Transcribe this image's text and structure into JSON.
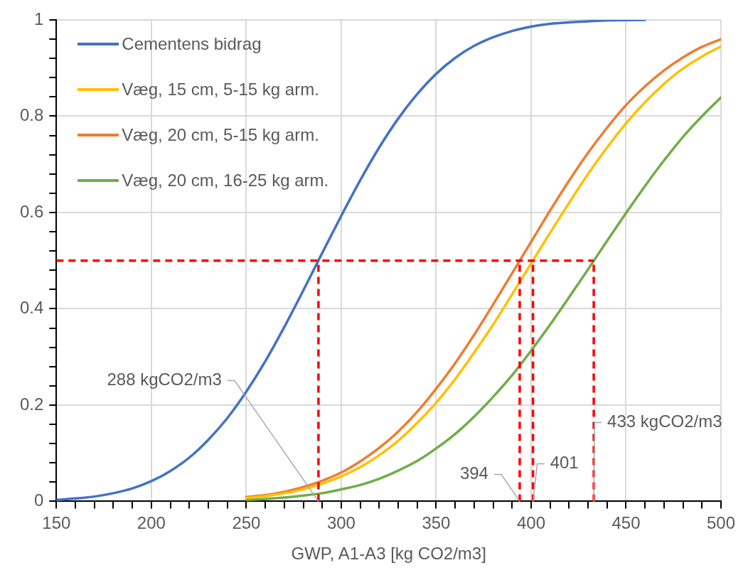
{
  "chart_data": {
    "type": "line",
    "xlabel": "GWP, A1-A3 [kg CO2/m3]",
    "xlim": [
      150,
      500
    ],
    "xticks": [
      150,
      {
        "value": 160,
        "label": null
      },
      {
        "value": 170,
        "label": null
      },
      {
        "value": 180,
        "label": null
      },
      {
        "value": 190,
        "label": null
      },
      200,
      {
        "value": 210,
        "label": null
      },
      {
        "value": 220,
        "label": null
      },
      {
        "value": 230,
        "label": null
      },
      {
        "value": 240,
        "label": null
      },
      250,
      {
        "value": 260,
        "label": null
      },
      {
        "value": 270,
        "label": null
      },
      {
        "value": 280,
        "label": null
      },
      {
        "value": 290,
        "label": null
      },
      300,
      {
        "value": 310,
        "label": null
      },
      {
        "value": 320,
        "label": null
      },
      {
        "value": 330,
        "label": null
      },
      {
        "value": 340,
        "label": null
      },
      350,
      {
        "value": 360,
        "label": null
      },
      {
        "value": 370,
        "label": null
      },
      {
        "value": 380,
        "label": null
      },
      {
        "value": 390,
        "label": null
      },
      400,
      {
        "value": 410,
        "label": null
      },
      {
        "value": 420,
        "label": null
      },
      {
        "value": 430,
        "label": null
      },
      {
        "value": 440,
        "label": null
      },
      450,
      {
        "value": 460,
        "label": null
      },
      {
        "value": 470,
        "label": null
      },
      {
        "value": 480,
        "label": null
      },
      {
        "value": 490,
        "label": null
      },
      500
    ],
    "ylim": [
      0,
      1
    ],
    "yticks": [
      0,
      {
        "value": 0.04,
        "label": null
      },
      {
        "value": 0.08,
        "label": null
      },
      {
        "value": 0.12,
        "label": null
      },
      {
        "value": 0.16,
        "label": null
      },
      0.2,
      {
        "value": 0.24,
        "label": null
      },
      {
        "value": 0.28,
        "label": null
      },
      {
        "value": 0.32,
        "label": null
      },
      {
        "value": 0.36,
        "label": null
      },
      0.4,
      {
        "value": 0.44,
        "label": null
      },
      {
        "value": 0.48,
        "label": null
      },
      {
        "value": 0.52,
        "label": null
      },
      {
        "value": 0.56,
        "label": null
      },
      0.6,
      {
        "value": 0.64,
        "label": null
      },
      {
        "value": 0.68,
        "label": null
      },
      {
        "value": 0.72,
        "label": null
      },
      {
        "value": 0.76,
        "label": null
      },
      0.8,
      {
        "value": 0.84,
        "label": null
      },
      {
        "value": 0.88,
        "label": null
      },
      {
        "value": 0.92,
        "label": null
      },
      {
        "value": 0.96,
        "label": null
      },
      1
    ],
    "grid": true,
    "legend": "top left",
    "marker": "none",
    "line_style": "solid",
    "series": [
      {
        "name": "Cementens bidrag",
        "color": "#4472c4",
        "x": [
          150,
          160,
          170,
          180,
          190,
          200,
          210,
          220,
          230,
          240,
          250,
          260,
          270,
          280,
          290,
          300,
          310,
          320,
          330,
          340,
          350,
          360,
          370,
          380,
          390,
          400,
          410,
          420,
          430,
          440,
          460
        ],
        "values": [
          0.003,
          0.006,
          0.01,
          0.017,
          0.027,
          0.042,
          0.063,
          0.091,
          0.128,
          0.173,
          0.228,
          0.291,
          0.362,
          0.438,
          0.516,
          0.593,
          0.667,
          0.735,
          0.795,
          0.846,
          0.888,
          0.921,
          0.946,
          0.964,
          0.977,
          0.986,
          0.992,
          0.995,
          0.997,
          0.999,
          1.0
        ]
      },
      {
        "name": "Væg, 15 cm, 5-15 kg arm.",
        "color": "#ffc000",
        "x": [
          250,
          260,
          270,
          280,
          290,
          300,
          310,
          320,
          330,
          340,
          350,
          360,
          370,
          380,
          390,
          400,
          410,
          420,
          430,
          440,
          450,
          460,
          470,
          480,
          490,
          500
        ],
        "values": [
          0.007,
          0.011,
          0.017,
          0.025,
          0.037,
          0.052,
          0.071,
          0.096,
          0.126,
          0.163,
          0.205,
          0.254,
          0.309,
          0.367,
          0.43,
          0.494,
          0.558,
          0.62,
          0.68,
          0.735,
          0.785,
          0.829,
          0.867,
          0.899,
          0.924,
          0.945
        ]
      },
      {
        "name": "Væg, 20 cm, 5-15 kg arm.",
        "color": "#ed7d31",
        "x": [
          250,
          260,
          270,
          280,
          290,
          300,
          310,
          320,
          330,
          340,
          350,
          360,
          370,
          380,
          390,
          400,
          410,
          420,
          430,
          440,
          450,
          460,
          470,
          480,
          490,
          500
        ],
        "values": [
          0.009,
          0.013,
          0.02,
          0.03,
          0.043,
          0.06,
          0.083,
          0.111,
          0.145,
          0.186,
          0.234,
          0.287,
          0.346,
          0.409,
          0.474,
          0.539,
          0.604,
          0.666,
          0.724,
          0.776,
          0.823,
          0.862,
          0.895,
          0.922,
          0.944,
          0.96
        ]
      },
      {
        "name": "Væg, 20 cm, 16-25 kg arm.",
        "color": "#70ad47",
        "x": [
          250,
          260,
          270,
          280,
          290,
          300,
          310,
          320,
          330,
          340,
          350,
          360,
          370,
          380,
          390,
          400,
          410,
          420,
          430,
          440,
          450,
          460,
          470,
          480,
          490,
          500
        ],
        "values": [
          0.003,
          0.005,
          0.008,
          0.012,
          0.017,
          0.025,
          0.034,
          0.047,
          0.064,
          0.084,
          0.11,
          0.14,
          0.176,
          0.217,
          0.262,
          0.313,
          0.367,
          0.424,
          0.482,
          0.541,
          0.599,
          0.655,
          0.708,
          0.757,
          0.8,
          0.839
        ]
      }
    ],
    "ref_lines": [
      {
        "axis": "y",
        "value": 0.5,
        "color": "#ff0000",
        "line_style": "dashed"
      },
      {
        "axis": "x",
        "value": 288,
        "color": "#ff0000",
        "line_style": "dashed"
      },
      {
        "axis": "x",
        "value": 394,
        "color": "#ff0000",
        "line_style": "dashed"
      },
      {
        "axis": "x",
        "value": 401,
        "color": "#ff0000",
        "line_style": "dashed"
      },
      {
        "axis": "x",
        "value": 433,
        "color": "#ff0000",
        "line_style": "dashed"
      }
    ],
    "annotations": [
      {
        "text": "288 kgCO2/m3",
        "x": 288,
        "y": 0
      },
      {
        "text": "394",
        "x": 394,
        "y": 0
      },
      {
        "text": "401",
        "x": 401,
        "y": 0
      },
      {
        "text": "433 kgCO2/m3",
        "x": 433,
        "y": 0
      }
    ]
  }
}
